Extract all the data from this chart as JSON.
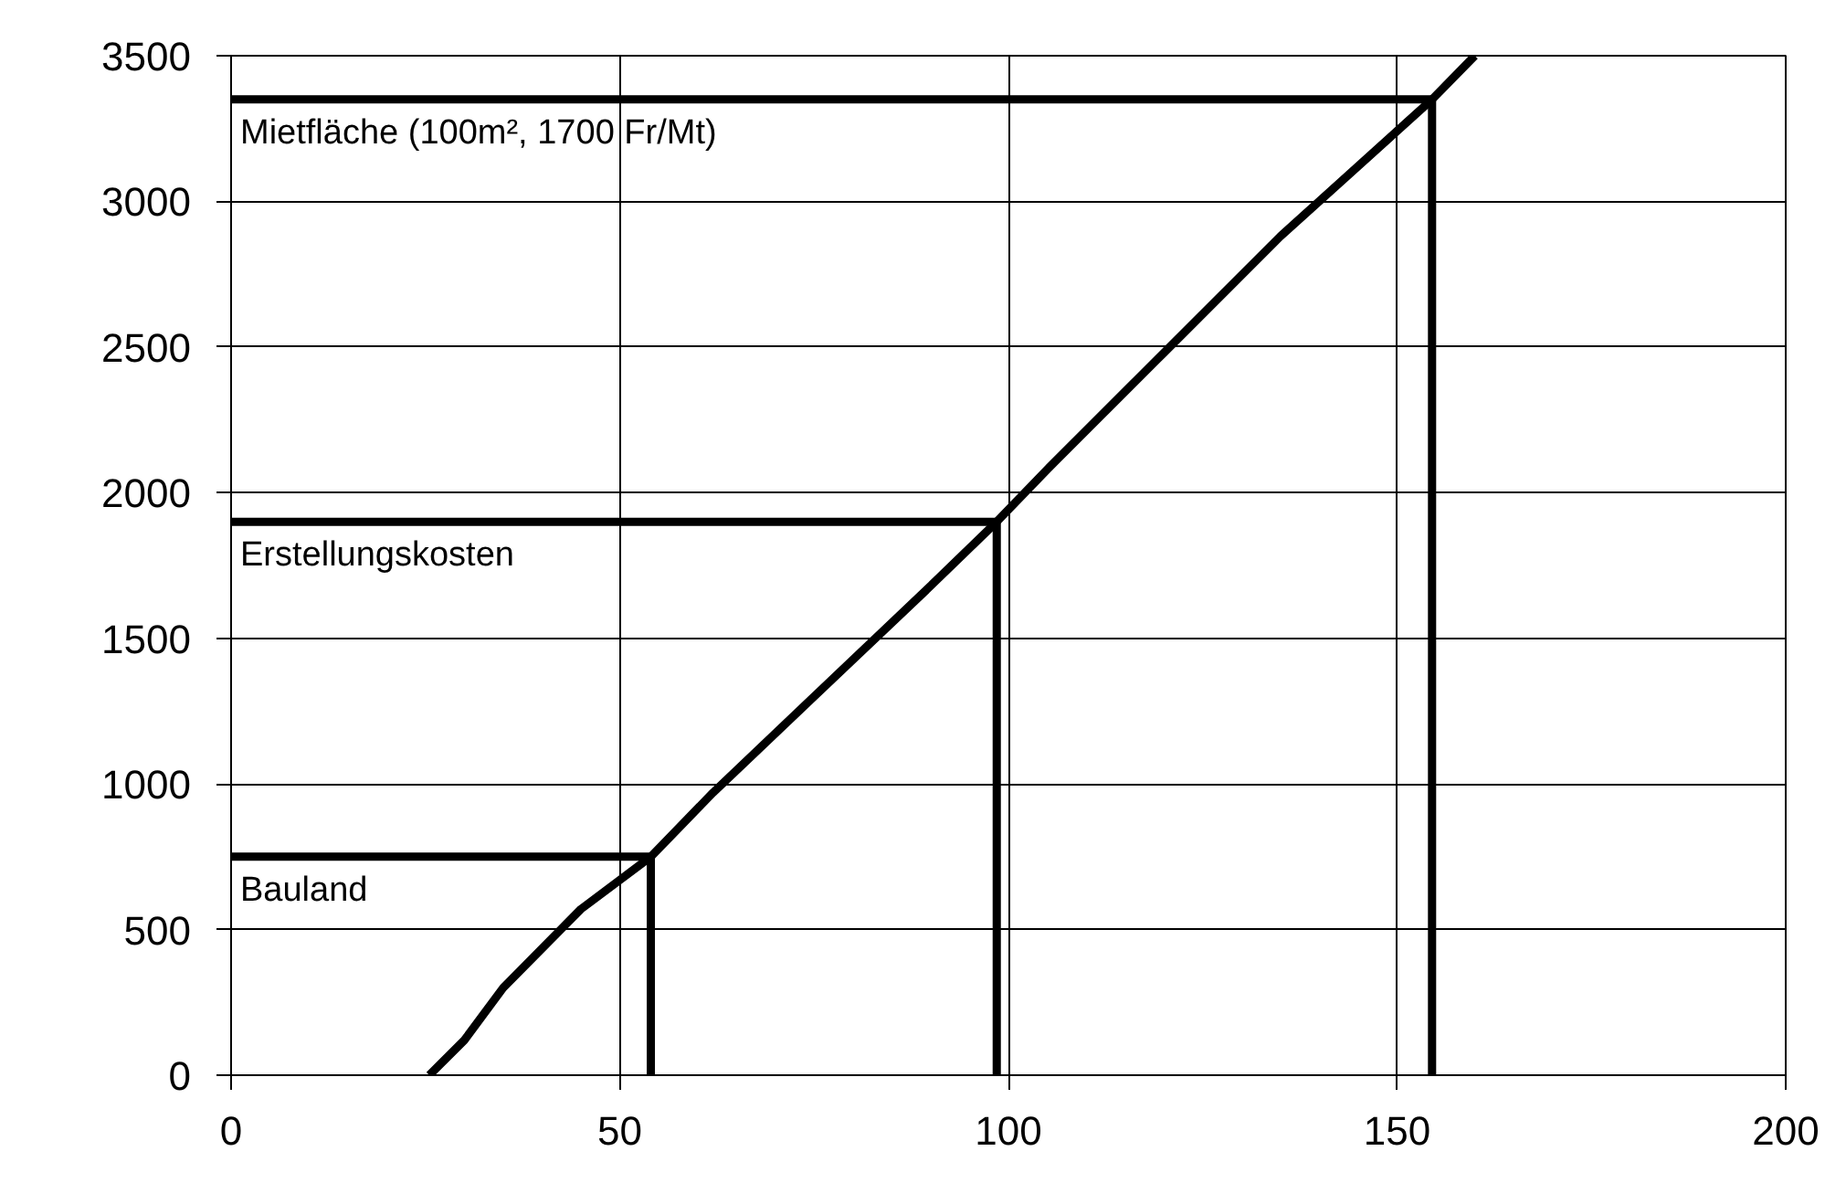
{
  "chart_data": {
    "type": "line",
    "xlim": [
      0,
      200
    ],
    "ylim": [
      0,
      3500
    ],
    "xticks": [
      0,
      50,
      100,
      150,
      200
    ],
    "yticks": [
      0,
      500,
      1000,
      1500,
      2000,
      2500,
      3000,
      3500
    ],
    "grid": true,
    "marker": "none",
    "line_style": "solid",
    "series": [
      {
        "color": "#000000",
        "x": [
          25.5,
          30,
          35,
          45,
          54,
          62,
          75,
          90,
          98.5,
          105,
          120,
          135,
          154.5,
          160
        ],
        "values": [
          0,
          120,
          300,
          570,
          750,
          970,
          1300,
          1680,
          1900,
          2080,
          2480,
          2880,
          3350,
          3500
        ]
      },
      {
        "color": "#000000",
        "x": [
          0,
          54,
          54
        ],
        "values": [
          750,
          750,
          0
        ]
      },
      {
        "color": "#000000",
        "x": [
          0,
          98.5,
          98.5
        ],
        "values": [
          1900,
          1900,
          0
        ]
      },
      {
        "color": "#000000",
        "x": [
          0,
          154.5,
          154.5
        ],
        "values": [
          3350,
          3350,
          0
        ]
      }
    ],
    "annotations": [
      {
        "text": "Bauland",
        "y": 750
      },
      {
        "text": "Erstellungskosten",
        "y": 1900
      },
      {
        "text": "Mietfläche (100m², 1700 Fr/Mt)",
        "y": 3350
      }
    ]
  }
}
